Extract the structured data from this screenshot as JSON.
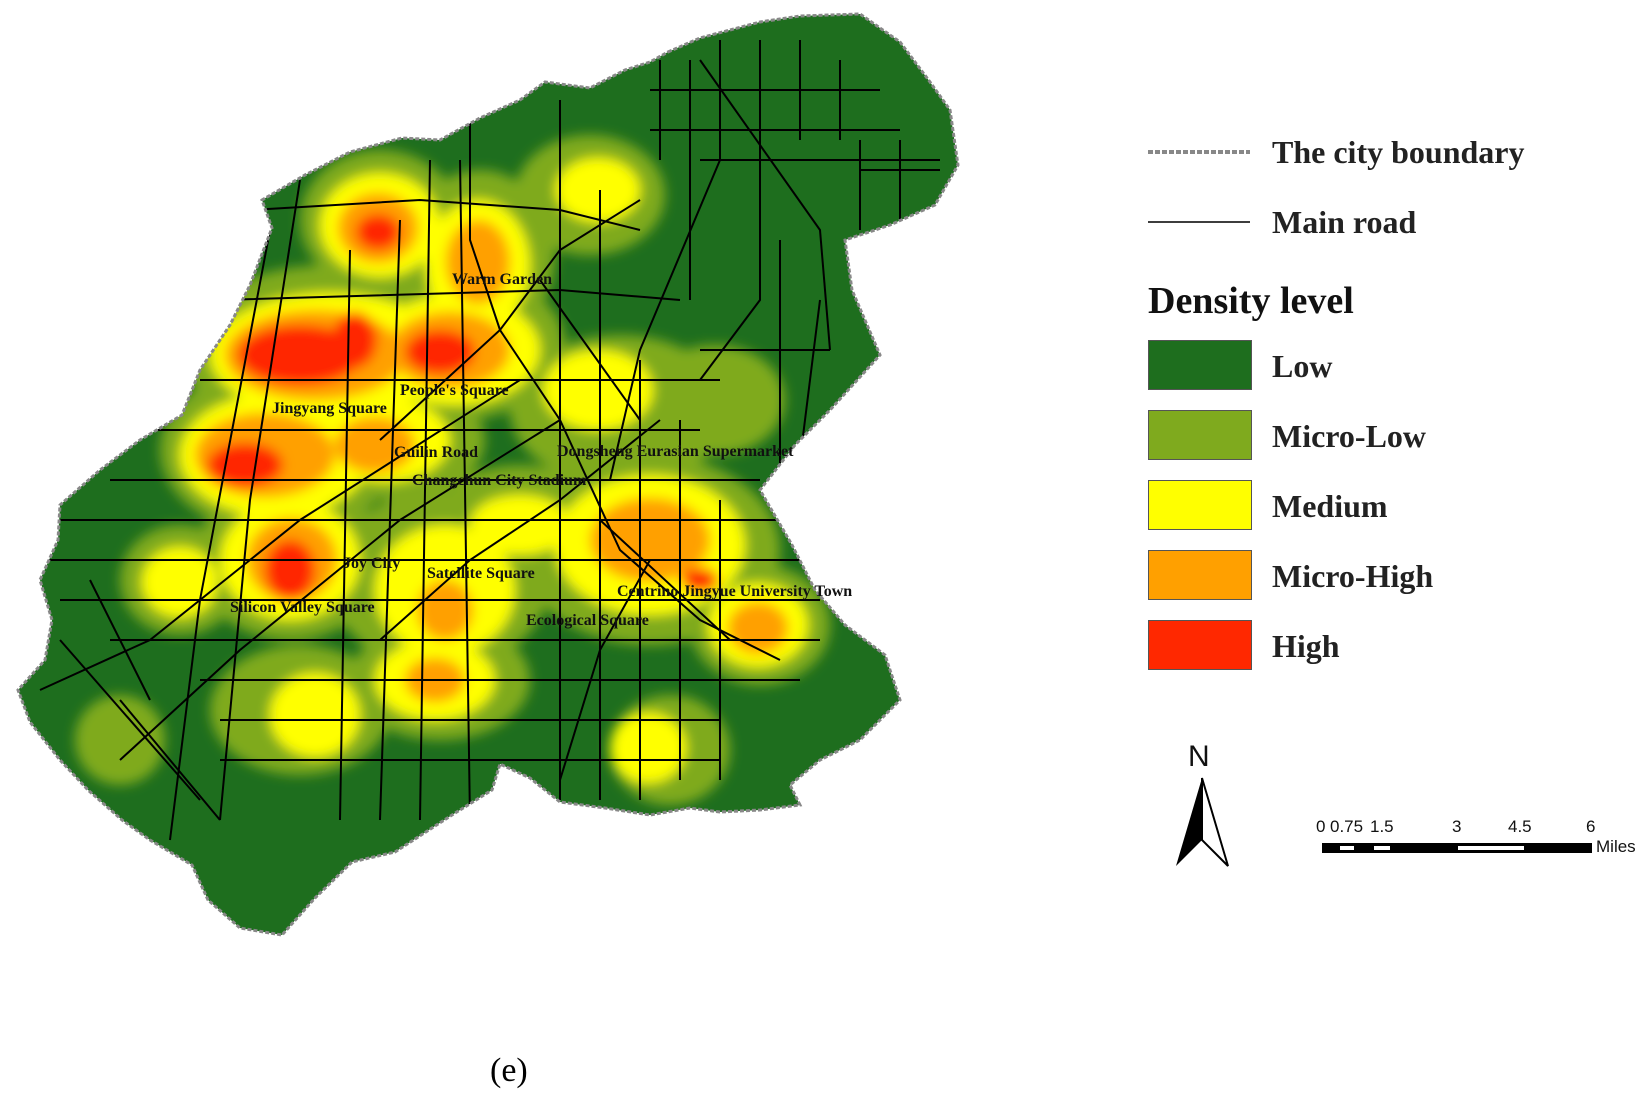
{
  "legend": {
    "boundary_label": "The city boundary",
    "road_label": "Main road",
    "title": "Density level",
    "classes": [
      {
        "label": "Low",
        "color": "#1e6e1e"
      },
      {
        "label": "Micro-Low",
        "color": "#7faa1e"
      },
      {
        "label": "Medium",
        "color": "#ffff00"
      },
      {
        "label": "Micro-High",
        "color": "#ffa000"
      },
      {
        "label": "High",
        "color": "#ff2800"
      }
    ]
  },
  "places": [
    "Warm Garden",
    "People's Square",
    "Jingyang Square",
    "Guilin Road",
    "Dongsheng Eurasian Supermarket",
    "Changchun City Stadium",
    "Joy City",
    "Satellite Square",
    "Centrino Jingyue University Town",
    "Silicon Valley Square",
    "Ecological Square"
  ],
  "north_arrow": {
    "label": "N"
  },
  "scale_bar": {
    "ticks": [
      "0",
      "0.75",
      "1.5",
      "3",
      "4.5",
      "6"
    ],
    "unit": "Miles"
  },
  "caption": "(e)"
}
